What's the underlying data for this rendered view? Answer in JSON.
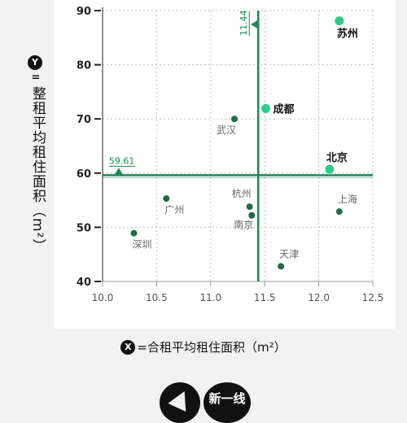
{
  "chart_data": {
    "type": "scatter",
    "x_axis": {
      "badge": "X",
      "label": "=合租平均租住面积（m²）",
      "range": [
        10.0,
        12.5
      ],
      "ticks": [
        "10.0",
        "10.5",
        "11.0",
        "11.5",
        "12.0",
        "12.5"
      ]
    },
    "y_axis": {
      "badge": "Y",
      "eq": "=",
      "label": "整租平均租住面积（m²）",
      "range": [
        40,
        90
      ],
      "ticks": [
        "40",
        "50",
        "60",
        "70",
        "80",
        "90"
      ]
    },
    "grid": true,
    "reference_lines": {
      "x_value": 11.44,
      "x_label": "11.44",
      "y_value": 59.61,
      "y_label": "59.61"
    },
    "points": [
      {
        "name": "苏州",
        "x": 12.19,
        "y": 88.1,
        "highlight": true
      },
      {
        "name": "成都",
        "x": 11.51,
        "y": 71.9,
        "highlight": true
      },
      {
        "name": "北京",
        "x": 12.1,
        "y": 60.7,
        "highlight": true
      },
      {
        "name": "武汉",
        "x": 11.22,
        "y": 70.0,
        "highlight": false
      },
      {
        "name": "广州",
        "x": 10.59,
        "y": 55.3,
        "highlight": false
      },
      {
        "name": "杭州",
        "x": 11.36,
        "y": 53.8,
        "highlight": false
      },
      {
        "name": "南京",
        "x": 11.38,
        "y": 52.2,
        "highlight": false
      },
      {
        "name": "上海",
        "x": 12.19,
        "y": 52.9,
        "highlight": false
      },
      {
        "name": "深圳",
        "x": 10.29,
        "y": 48.9,
        "highlight": false
      },
      {
        "name": "天津",
        "x": 11.65,
        "y": 42.8,
        "highlight": false
      }
    ],
    "colors": {
      "highlight": "#2ecc8a",
      "normal": "#1e6b45",
      "reference": "#1a8a55",
      "grid": "#bdbdbd",
      "axis": "#222222"
    }
  },
  "footer": {
    "logo2_text": "新一线"
  }
}
